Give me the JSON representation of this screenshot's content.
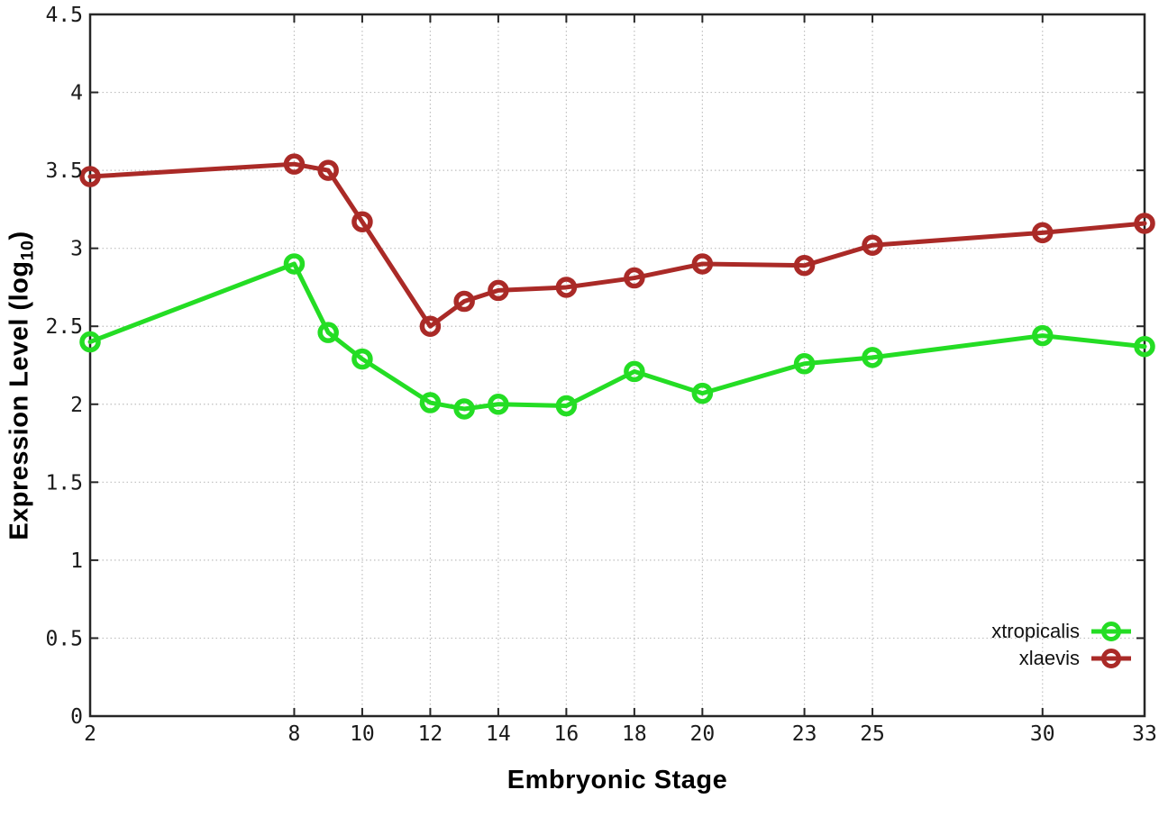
{
  "chart_data": {
    "type": "line",
    "title": "",
    "xlabel": "Embryonic Stage",
    "ylabel_parts": {
      "main": "Expression Level (log",
      "sub": "10",
      "close": ")"
    },
    "x": [
      2,
      8,
      9,
      10,
      12,
      13,
      14,
      16,
      18,
      20,
      23,
      25,
      30,
      33
    ],
    "series": [
      {
        "name": "xtropicalis",
        "color": "#24dd24",
        "marker": "open-circle",
        "values": [
          2.4,
          2.9,
          2.46,
          2.29,
          2.01,
          1.97,
          2.0,
          1.99,
          2.21,
          2.07,
          2.26,
          2.3,
          2.44,
          2.37
        ]
      },
      {
        "name": "xlaevis",
        "color": "#aa2a27",
        "marker": "open-circle",
        "values": [
          3.46,
          3.54,
          3.5,
          3.17,
          2.5,
          2.66,
          2.73,
          2.75,
          2.81,
          2.9,
          2.89,
          3.02,
          3.1,
          3.16
        ]
      }
    ],
    "xlim": [
      2,
      33
    ],
    "ylim": [
      0,
      4.5
    ],
    "xticks": [
      2,
      8,
      10,
      12,
      14,
      16,
      18,
      20,
      23,
      25,
      30,
      33
    ],
    "xtick_labels": [
      "2",
      "8",
      "10",
      "12",
      "14",
      "16",
      "18",
      "20",
      "23",
      "25",
      "30",
      "33"
    ],
    "yticks": [
      0,
      0.5,
      1,
      1.5,
      2,
      2.5,
      3,
      3.5,
      4,
      4.5
    ],
    "ytick_labels": [
      "0",
      "0.5",
      "1",
      "1.5",
      "2",
      "2.5",
      "3",
      "3.5",
      "4",
      "4.5"
    ],
    "grid": "dotted",
    "legend_position": "inside-lower-right"
  },
  "colors": {
    "background": "#ffffff",
    "grid": "#bfbfbf",
    "axis": "#262626",
    "tick_text": "#1a1a1a"
  }
}
